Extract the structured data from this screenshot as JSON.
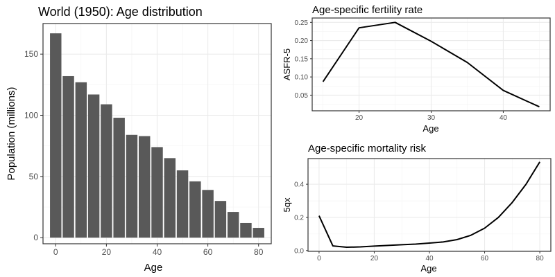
{
  "chart_data": [
    {
      "type": "bar",
      "title": "World (1950): Age distribution",
      "xlabel": "Age",
      "ylabel": "Population (millions)",
      "x": [
        0,
        5,
        10,
        15,
        20,
        25,
        30,
        35,
        40,
        45,
        50,
        55,
        60,
        65,
        70,
        75,
        80
      ],
      "values": [
        167,
        132,
        127,
        117,
        109,
        98,
        84,
        83,
        74,
        65,
        55,
        46,
        39,
        30,
        21,
        12,
        8
      ],
      "xlim": [
        -5,
        85
      ],
      "ylim": [
        -5,
        175
      ],
      "xticks": [
        "0",
        "20",
        "40",
        "60",
        "80"
      ],
      "yticks": [
        "0",
        "50",
        "100",
        "150"
      ],
      "grid": true,
      "legend": "none"
    },
    {
      "type": "line",
      "title": "Age-specific fertility rate",
      "xlabel": "Age",
      "ylabel": "ASFR-5",
      "x": [
        15,
        20,
        25,
        30,
        35,
        40,
        45
      ],
      "y": [
        0.087,
        0.235,
        0.25,
        0.198,
        0.14,
        0.063,
        0.018
      ],
      "xlim": [
        13.5,
        46.5
      ],
      "ylim": [
        0.007,
        0.262
      ],
      "xticks": [
        "20",
        "30",
        "40"
      ],
      "yticks": [
        "0.05",
        "0.10",
        "0.15",
        "0.20",
        "0.25"
      ],
      "grid": true,
      "legend": "none"
    },
    {
      "type": "line",
      "title": "Age-specific mortality risk",
      "xlabel": "Age",
      "ylabel": "5qx",
      "x": [
        0,
        5,
        10,
        15,
        20,
        25,
        30,
        35,
        40,
        45,
        50,
        55,
        60,
        65,
        70,
        75,
        80
      ],
      "y": [
        0.21,
        0.028,
        0.02,
        0.022,
        0.027,
        0.031,
        0.035,
        0.039,
        0.045,
        0.052,
        0.066,
        0.092,
        0.135,
        0.2,
        0.29,
        0.4,
        0.535
      ],
      "xlim": [
        -4,
        84
      ],
      "ylim": [
        -0.005,
        0.555
      ],
      "xticks": [
        "0",
        "20",
        "40",
        "60",
        "80"
      ],
      "yticks": [
        "0.0",
        "0.2",
        "0.4"
      ],
      "grid": true,
      "legend": "none"
    }
  ]
}
